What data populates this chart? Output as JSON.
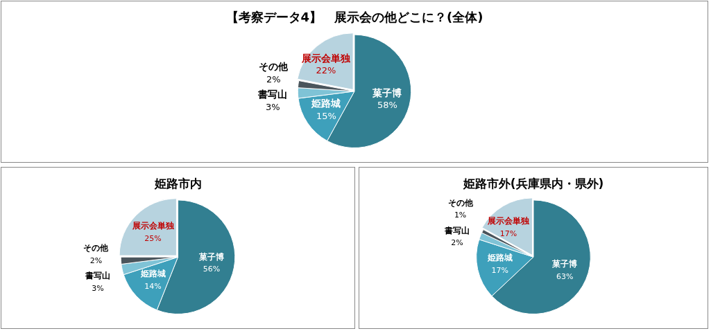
{
  "chart_data": [
    {
      "type": "pie",
      "title": "【考察データ4】　展示会の他どこに？(全体)",
      "categories": [
        "菓子博",
        "姫路城",
        "書写山",
        "その他",
        "展示会単独"
      ],
      "values": [
        58,
        15,
        3,
        2,
        22
      ],
      "value_labels": [
        "58%",
        "15%",
        "3%",
        "2%",
        "22%"
      ],
      "colors": [
        "#327f91",
        "#3ea0bb",
        "#7fc3d6",
        "#4a555c",
        "#b7d3df"
      ],
      "legend": false
    },
    {
      "type": "pie",
      "title": "姫路市内",
      "categories": [
        "菓子博",
        "姫路城",
        "書写山",
        "その他",
        "展示会単独"
      ],
      "values": [
        56,
        14,
        3,
        2,
        25
      ],
      "value_labels": [
        "56%",
        "14%",
        "3%",
        "2%",
        "25%"
      ],
      "colors": [
        "#327f91",
        "#3ea0bb",
        "#7fc3d6",
        "#4a555c",
        "#b7d3df"
      ],
      "legend": false
    },
    {
      "type": "pie",
      "title": "姫路市外(兵庫県内・県外)",
      "categories": [
        "菓子博",
        "姫路城",
        "書写山",
        "その他",
        "展示会単独"
      ],
      "values": [
        63,
        17,
        2,
        1,
        17
      ],
      "value_labels": [
        "63%",
        "17%",
        "2%",
        "1%",
        "17%"
      ],
      "colors": [
        "#327f91",
        "#3ea0bb",
        "#7fc3d6",
        "#4a555c",
        "#b7d3df"
      ],
      "legend": false
    }
  ]
}
